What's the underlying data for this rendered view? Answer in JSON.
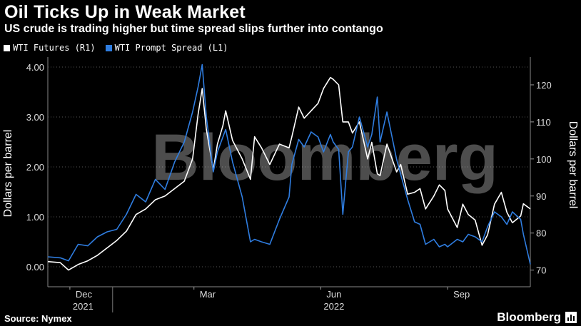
{
  "header": {
    "title": "Oil Ticks Up in Weak Market",
    "subtitle": "US crude is trading higher but time spread slips further into contango"
  },
  "footer": {
    "source": "Source: Nymex",
    "brand": "Bloomberg",
    "watermark": "Bloomberg"
  },
  "colors": {
    "background": "#000000",
    "wti_futures": "#ffffff",
    "wti_spread": "#2f7de0",
    "grid": "#555555"
  },
  "chart_data": {
    "type": "line",
    "title": "Oil Ticks Up in Weak Market",
    "subtitle": "US crude is trading higher but time spread slips further into contango",
    "left_axis": {
      "label": "Dollars per barrel",
      "range": [
        -0.4,
        4.2
      ],
      "ticks": [
        "0.00",
        "1.00",
        "2.00",
        "3.00",
        "4.00"
      ]
    },
    "right_axis": {
      "label": "Dollars per barrel",
      "range": [
        65.5,
        127.5
      ],
      "ticks": [
        "70",
        "80",
        "90",
        "100",
        "110",
        "120"
      ]
    },
    "x_axis": {
      "range": [
        "2021-11-15",
        "2022-10-31"
      ],
      "month_labels": [
        {
          "date": "2021-12-01",
          "label": "Dec"
        },
        {
          "date": "2022-03-01",
          "label": "Mar"
        },
        {
          "date": "2022-06-01",
          "label": "Jun"
        },
        {
          "date": "2022-09-01",
          "label": "Sep"
        }
      ],
      "year_labels": [
        {
          "date": "2021-12-01",
          "label": "2021"
        },
        {
          "date": "2022-06-01",
          "label": "2022"
        }
      ],
      "year_break": "2022-01-01"
    },
    "grid": true,
    "legend_position": "top-left",
    "series": [
      {
        "name": "WTI Futures (R1)",
        "axis": "right",
        "color": "#ffffff",
        "points": [
          [
            "2021-11-15",
            72.3
          ],
          [
            "2021-11-24",
            72.0
          ],
          [
            "2021-11-30",
            70.0
          ],
          [
            "2021-12-07",
            71.5
          ],
          [
            "2021-12-14",
            72.5
          ],
          [
            "2021-12-21",
            74.0
          ],
          [
            "2021-12-28",
            76.0
          ],
          [
            "2022-01-04",
            78.0
          ],
          [
            "2022-01-11",
            80.5
          ],
          [
            "2022-01-18",
            85.0
          ],
          [
            "2022-01-25",
            86.5
          ],
          [
            "2022-02-01",
            89.0
          ],
          [
            "2022-02-08",
            90.0
          ],
          [
            "2022-02-15",
            92.0
          ],
          [
            "2022-02-22",
            94.0
          ],
          [
            "2022-02-28",
            100.0
          ],
          [
            "2022-03-04",
            112.0
          ],
          [
            "2022-03-07",
            119.0
          ],
          [
            "2022-03-10",
            108.0
          ],
          [
            "2022-03-15",
            97.0
          ],
          [
            "2022-03-18",
            104.0
          ],
          [
            "2022-03-22",
            109.0
          ],
          [
            "2022-03-24",
            113.0
          ],
          [
            "2022-03-29",
            105.0
          ],
          [
            "2022-04-05",
            100.0
          ],
          [
            "2022-04-11",
            94.5
          ],
          [
            "2022-04-14",
            106.0
          ],
          [
            "2022-04-19",
            103.0
          ],
          [
            "2022-04-25",
            98.5
          ],
          [
            "2022-05-02",
            104.0
          ],
          [
            "2022-05-09",
            103.0
          ],
          [
            "2022-05-11",
            106.0
          ],
          [
            "2022-05-16",
            114.0
          ],
          [
            "2022-05-20",
            111.0
          ],
          [
            "2022-05-25",
            113.0
          ],
          [
            "2022-05-30",
            115.0
          ],
          [
            "2022-06-03",
            119.0
          ],
          [
            "2022-06-08",
            122.0
          ],
          [
            "2022-06-10",
            121.5
          ],
          [
            "2022-06-14",
            120.0
          ],
          [
            "2022-06-17",
            110.0
          ],
          [
            "2022-06-21",
            110.0
          ],
          [
            "2022-06-24",
            107.0
          ],
          [
            "2022-06-29",
            110.0
          ],
          [
            "2022-07-05",
            100.0
          ],
          [
            "2022-07-08",
            104.5
          ],
          [
            "2022-07-12",
            96.0
          ],
          [
            "2022-07-14",
            95.5
          ],
          [
            "2022-07-19",
            104.0
          ],
          [
            "2022-07-26",
            96.5
          ],
          [
            "2022-07-29",
            98.5
          ],
          [
            "2022-08-03",
            90.5
          ],
          [
            "2022-08-08",
            91.0
          ],
          [
            "2022-08-12",
            92.0
          ],
          [
            "2022-08-16",
            86.5
          ],
          [
            "2022-08-22",
            90.0
          ],
          [
            "2022-08-26",
            93.0
          ],
          [
            "2022-08-30",
            91.5
          ],
          [
            "2022-09-01",
            86.5
          ],
          [
            "2022-09-08",
            81.5
          ],
          [
            "2022-09-12",
            87.8
          ],
          [
            "2022-09-16",
            85.0
          ],
          [
            "2022-09-21",
            83.5
          ],
          [
            "2022-09-26",
            76.7
          ],
          [
            "2022-09-30",
            79.5
          ],
          [
            "2022-10-05",
            87.8
          ],
          [
            "2022-10-10",
            91.0
          ],
          [
            "2022-10-14",
            85.6
          ],
          [
            "2022-10-18",
            82.8
          ],
          [
            "2022-10-24",
            84.6
          ],
          [
            "2022-10-26",
            87.9
          ],
          [
            "2022-10-31",
            86.5
          ]
        ]
      },
      {
        "name": "WTI Prompt Spread (L1)",
        "axis": "left",
        "color": "#2f7de0",
        "points": [
          [
            "2021-11-15",
            0.2
          ],
          [
            "2021-11-24",
            0.18
          ],
          [
            "2021-11-30",
            0.12
          ],
          [
            "2021-12-07",
            0.45
          ],
          [
            "2021-12-14",
            0.42
          ],
          [
            "2021-12-21",
            0.6
          ],
          [
            "2021-12-28",
            0.7
          ],
          [
            "2022-01-04",
            0.75
          ],
          [
            "2022-01-11",
            1.05
          ],
          [
            "2022-01-18",
            1.45
          ],
          [
            "2022-01-25",
            1.3
          ],
          [
            "2022-02-01",
            1.75
          ],
          [
            "2022-02-08",
            1.55
          ],
          [
            "2022-02-15",
            2.1
          ],
          [
            "2022-02-22",
            2.5
          ],
          [
            "2022-02-28",
            3.1
          ],
          [
            "2022-03-04",
            3.6
          ],
          [
            "2022-03-07",
            4.05
          ],
          [
            "2022-03-10",
            3.0
          ],
          [
            "2022-03-15",
            1.9
          ],
          [
            "2022-03-18",
            2.3
          ],
          [
            "2022-03-22",
            2.6
          ],
          [
            "2022-03-24",
            2.75
          ],
          [
            "2022-03-29",
            2.1
          ],
          [
            "2022-04-05",
            1.4
          ],
          [
            "2022-04-11",
            0.5
          ],
          [
            "2022-04-14",
            0.55
          ],
          [
            "2022-04-19",
            0.5
          ],
          [
            "2022-04-25",
            0.45
          ],
          [
            "2022-05-02",
            0.95
          ],
          [
            "2022-05-09",
            1.4
          ],
          [
            "2022-05-11",
            2.05
          ],
          [
            "2022-05-16",
            2.55
          ],
          [
            "2022-05-20",
            2.4
          ],
          [
            "2022-05-25",
            2.7
          ],
          [
            "2022-05-30",
            2.6
          ],
          [
            "2022-06-03",
            2.3
          ],
          [
            "2022-06-08",
            2.65
          ],
          [
            "2022-06-10",
            2.5
          ],
          [
            "2022-06-14",
            2.35
          ],
          [
            "2022-06-17",
            1.05
          ],
          [
            "2022-06-21",
            2.3
          ],
          [
            "2022-06-24",
            2.4
          ],
          [
            "2022-06-29",
            3.0
          ],
          [
            "2022-07-05",
            2.4
          ],
          [
            "2022-07-08",
            2.65
          ],
          [
            "2022-07-12",
            3.4
          ],
          [
            "2022-07-14",
            2.5
          ],
          [
            "2022-07-19",
            3.1
          ],
          [
            "2022-07-26",
            2.15
          ],
          [
            "2022-07-29",
            1.85
          ],
          [
            "2022-08-03",
            1.35
          ],
          [
            "2022-08-08",
            0.9
          ],
          [
            "2022-08-12",
            0.85
          ],
          [
            "2022-08-16",
            0.45
          ],
          [
            "2022-08-22",
            0.55
          ],
          [
            "2022-08-26",
            0.4
          ],
          [
            "2022-08-30",
            0.45
          ],
          [
            "2022-09-01",
            0.4
          ],
          [
            "2022-09-08",
            0.55
          ],
          [
            "2022-09-12",
            0.5
          ],
          [
            "2022-09-16",
            0.65
          ],
          [
            "2022-09-21",
            0.6
          ],
          [
            "2022-09-26",
            0.5
          ],
          [
            "2022-09-30",
            0.8
          ],
          [
            "2022-10-05",
            1.1
          ],
          [
            "2022-10-10",
            1.0
          ],
          [
            "2022-10-14",
            0.85
          ],
          [
            "2022-10-18",
            1.1
          ],
          [
            "2022-10-24",
            0.95
          ],
          [
            "2022-10-26",
            0.65
          ],
          [
            "2022-10-31",
            0.05
          ]
        ]
      }
    ]
  }
}
